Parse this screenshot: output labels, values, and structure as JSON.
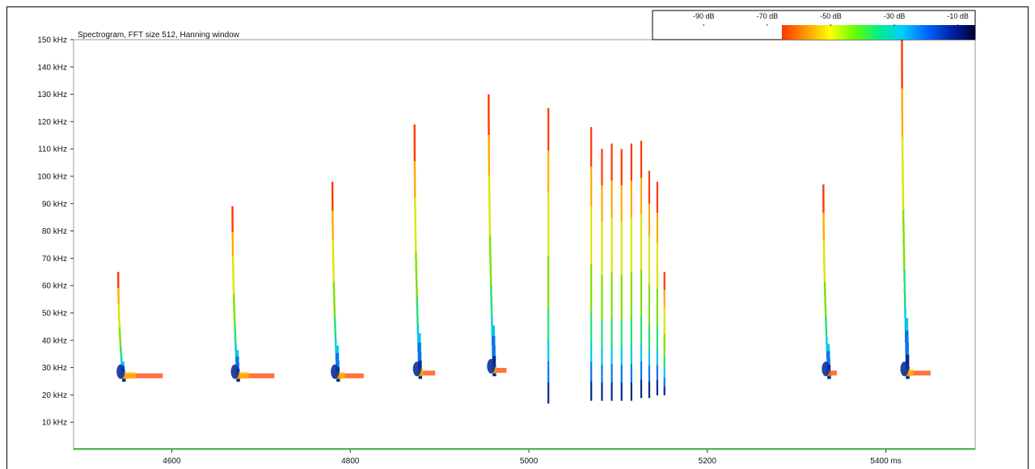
{
  "chart_data": {
    "type": "heatmap",
    "title": "Spectrogram, FFT size 512, Hanning window",
    "xlabel": "",
    "ylabel": "",
    "x_unit": "ms",
    "y_unit": "kHz",
    "xlim": [
      4490,
      5500
    ],
    "ylim": [
      0,
      150
    ],
    "x_ticks": [
      {
        "value": 4600,
        "label": "4600"
      },
      {
        "value": 4800,
        "label": "4800"
      },
      {
        "value": 5000,
        "label": "5000"
      },
      {
        "value": 5200,
        "label": "5200"
      },
      {
        "value": 5400,
        "label": "5400 ms"
      }
    ],
    "y_ticks": [
      {
        "value": 10,
        "label": "10 kHz"
      },
      {
        "value": 20,
        "label": "20 kHz"
      },
      {
        "value": 30,
        "label": "30 kHz"
      },
      {
        "value": 40,
        "label": "40 kHz"
      },
      {
        "value": 50,
        "label": "50 kHz"
      },
      {
        "value": 60,
        "label": "60 kHz"
      },
      {
        "value": 70,
        "label": "70 kHz"
      },
      {
        "value": 80,
        "label": "80 kHz"
      },
      {
        "value": 90,
        "label": "90 kHz"
      },
      {
        "value": 100,
        "label": "100 kHz"
      },
      {
        "value": 110,
        "label": "110 kHz"
      },
      {
        "value": 120,
        "label": "120 kHz"
      },
      {
        "value": 130,
        "label": "130 kHz"
      },
      {
        "value": 140,
        "label": "140 kHz"
      },
      {
        "value": 150,
        "label": "150 kHz"
      }
    ],
    "colorbar": {
      "ticks": [
        {
          "value": -90,
          "label": "-90 dB"
        },
        {
          "value": -70,
          "label": "-70 dB"
        },
        {
          "value": -50,
          "label": "-50 dB"
        },
        {
          "value": -30,
          "label": "-30 dB"
        },
        {
          "value": -10,
          "label": "-10 dB"
        }
      ],
      "range": [
        -100,
        0
      ],
      "colors": [
        "#ffffff",
        "#ff3300",
        "#ff9900",
        "#ffff00",
        "#66ff00",
        "#00ee88",
        "#00ccff",
        "#0066ff",
        "#0022aa",
        "#000033"
      ]
    },
    "calls": [
      {
        "type": "fm",
        "t": 4540,
        "f_high": 65,
        "f_low": 25,
        "tail_end": 4590
      },
      {
        "type": "fm",
        "t": 4668,
        "f_high": 89,
        "f_low": 25,
        "tail_end": 4715
      },
      {
        "type": "fm",
        "t": 4780,
        "f_high": 98,
        "f_low": 25,
        "tail_end": 4815
      },
      {
        "type": "fm",
        "t": 4872,
        "f_high": 119,
        "f_low": 26,
        "tail_end": 4895
      },
      {
        "type": "fm",
        "t": 4955,
        "f_high": 130,
        "f_low": 27,
        "tail_end": 4975
      },
      {
        "type": "buzz",
        "t": 5022,
        "f_high": 125,
        "f_low": 17
      },
      {
        "type": "buzz",
        "t": 5070,
        "f_high": 118,
        "f_low": 18
      },
      {
        "type": "buzz",
        "t": 5082,
        "f_high": 110,
        "f_low": 18
      },
      {
        "type": "buzz",
        "t": 5093,
        "f_high": 112,
        "f_low": 18
      },
      {
        "type": "buzz",
        "t": 5104,
        "f_high": 110,
        "f_low": 18
      },
      {
        "type": "buzz",
        "t": 5115,
        "f_high": 112,
        "f_low": 18
      },
      {
        "type": "buzz",
        "t": 5126,
        "f_high": 113,
        "f_low": 19
      },
      {
        "type": "buzz",
        "t": 5135,
        "f_high": 102,
        "f_low": 19
      },
      {
        "type": "buzz",
        "t": 5144,
        "f_high": 98,
        "f_low": 20
      },
      {
        "type": "buzz",
        "t": 5152,
        "f_high": 65,
        "f_low": 20
      },
      {
        "type": "fm",
        "t": 5330,
        "f_high": 97,
        "f_low": 26,
        "tail_end": 5345
      },
      {
        "type": "fm",
        "t": 5418,
        "f_high": 150,
        "f_low": 26,
        "tail_end": 5450
      }
    ]
  }
}
